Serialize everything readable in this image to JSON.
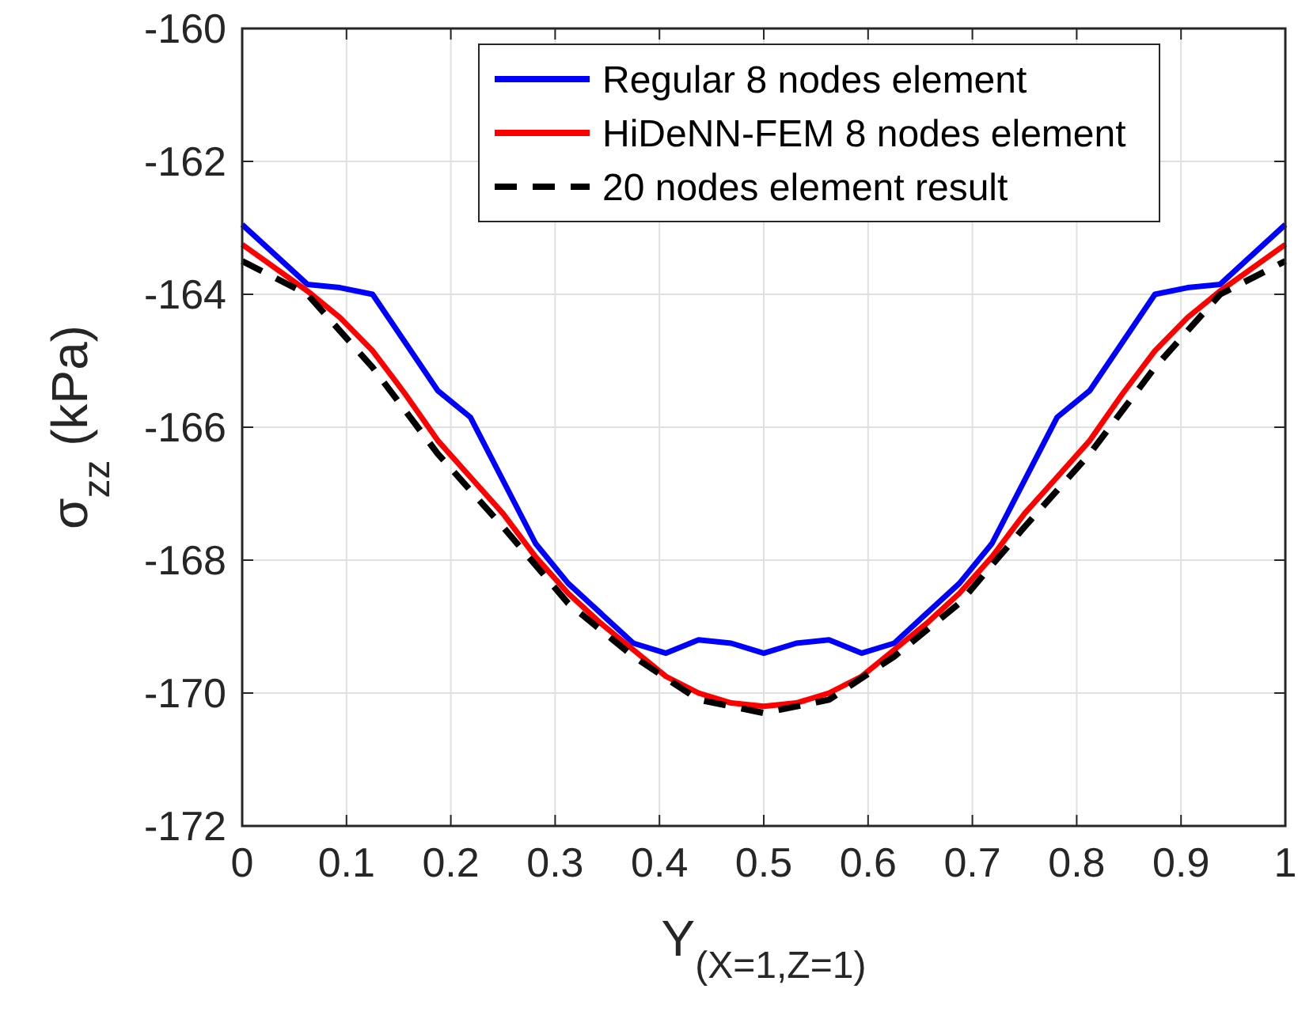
{
  "chart_data": {
    "type": "line",
    "xlabel": "Y$_{(X=1,Z=1)}$",
    "ylabel": "σ$_{zz}$ (kPa)",
    "xlim": [
      0,
      1
    ],
    "ylim": [
      -172,
      -160
    ],
    "xticks": [
      0,
      0.1,
      0.2,
      0.3,
      0.4,
      0.5,
      0.6,
      0.7,
      0.8,
      0.9,
      1
    ],
    "yticks": [
      -172,
      -170,
      -168,
      -166,
      -164,
      -162,
      -160
    ],
    "grid": true,
    "legend": "top",
    "series": [
      {
        "name": "Regular 8 nodes element",
        "color": "#0000ff",
        "line_style": "solid",
        "x": [
          0,
          0.0625,
          0.09375,
          0.125,
          0.1875,
          0.21875,
          0.28125,
          0.3125,
          0.34375,
          0.375,
          0.40625,
          0.4375,
          0.46875,
          0.5,
          0.53125,
          0.5625,
          0.59375,
          0.625,
          0.65625,
          0.6875,
          0.71875,
          0.78125,
          0.8125,
          0.875,
          0.90625,
          0.9375,
          1
        ],
        "values": [
          -162.95,
          -163.85,
          -163.9,
          -164.0,
          -165.45,
          -165.85,
          -167.75,
          -168.35,
          -168.8,
          -169.25,
          -169.4,
          -169.2,
          -169.25,
          -169.4,
          -169.25,
          -169.2,
          -169.4,
          -169.25,
          -168.8,
          -168.35,
          -167.75,
          -165.85,
          -165.45,
          -164.0,
          -163.9,
          -163.85,
          -162.95
        ]
      },
      {
        "name": "HiDeNN-FEM 8 nodes element",
        "color": "#ff0000",
        "line_style": "solid",
        "x": [
          0,
          0.0625,
          0.09375,
          0.125,
          0.15625,
          0.1875,
          0.21875,
          0.25,
          0.28125,
          0.3125,
          0.34375,
          0.375,
          0.40625,
          0.4375,
          0.46875,
          0.5,
          0.53125,
          0.5625,
          0.59375,
          0.625,
          0.65625,
          0.6875,
          0.71875,
          0.75,
          0.78125,
          0.8125,
          0.84375,
          0.875,
          0.90625,
          0.9375,
          1
        ],
        "values": [
          -163.25,
          -163.95,
          -164.35,
          -164.85,
          -165.5,
          -166.2,
          -166.75,
          -167.3,
          -167.95,
          -168.5,
          -168.95,
          -169.35,
          -169.75,
          -170.0,
          -170.15,
          -170.2,
          -170.15,
          -170.0,
          -169.75,
          -169.35,
          -168.95,
          -168.5,
          -167.95,
          -167.3,
          -166.75,
          -166.2,
          -165.5,
          -164.85,
          -164.35,
          -163.95,
          -163.25
        ]
      },
      {
        "name": "20 nodes element result",
        "color": "#000000",
        "line_style": "dashed",
        "x": [
          0,
          0.0625,
          0.125,
          0.1875,
          0.25,
          0.3125,
          0.375,
          0.4375,
          0.5,
          0.5625,
          0.625,
          0.6875,
          0.75,
          0.8125,
          0.875,
          0.9375,
          1
        ],
        "values": [
          -163.5,
          -164.0,
          -165.1,
          -166.4,
          -167.5,
          -168.65,
          -169.45,
          -170.1,
          -170.3,
          -170.1,
          -169.45,
          -168.65,
          -167.5,
          -166.4,
          -165.1,
          -164.0,
          -163.5
        ]
      }
    ]
  }
}
